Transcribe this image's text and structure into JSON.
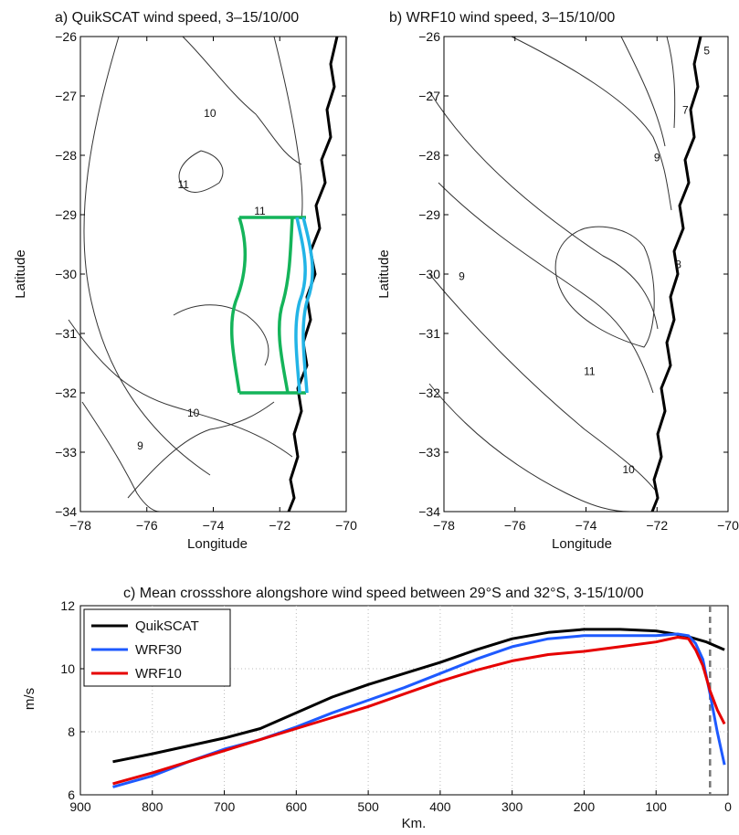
{
  "chart_data": [
    {
      "type": "contour",
      "title": "a) QuikSCAT wind speed, 3–15/10/00",
      "xlabel": "Longitude",
      "ylabel": "Latitude",
      "xlim": [
        -78,
        -70
      ],
      "ylim": [
        -34,
        -26
      ],
      "xticks": [
        -78,
        -76,
        -74,
        -72,
        -70
      ],
      "yticks": [
        -34,
        -33,
        -32,
        -31,
        -30,
        -29,
        -28,
        -27,
        -26
      ],
      "contour_labels": [
        {
          "text": "10",
          "lon": -74.1,
          "lat": -27.35
        },
        {
          "text": "11",
          "lon": -74.9,
          "lat": -28.55
        },
        {
          "text": "11",
          "lon": -72.6,
          "lat": -29.0
        },
        {
          "text": "10",
          "lon": -74.6,
          "lat": -32.4
        },
        {
          "text": "9",
          "lon": -76.2,
          "lat": -32.95
        }
      ],
      "boxes": [
        {
          "color": "#14b45a",
          "name": "outer domain",
          "lon_range": [
            -73.2,
            -71.3
          ],
          "lat_range": [
            -32.0,
            -29.1
          ]
        },
        {
          "color": "#22b4e6",
          "name": "nearshore domain",
          "lon_range": [
            -71.8,
            -71.3
          ],
          "lat_range": [
            -32.0,
            -29.1
          ]
        }
      ]
    },
    {
      "type": "contour",
      "title": "b) WRF10 wind speed,  3–15/10/00",
      "xlabel": "Longitude",
      "ylabel": "Latitude",
      "xlim": [
        -78,
        -70
      ],
      "ylim": [
        -34,
        -26
      ],
      "xticks": [
        -78,
        -76,
        -74,
        -72,
        -70
      ],
      "yticks": [
        -34,
        -33,
        -32,
        -31,
        -30,
        -29,
        -28,
        -27,
        -26
      ],
      "contour_labels": [
        {
          "text": "5",
          "lon": -70.6,
          "lat": -26.3
        },
        {
          "text": "7",
          "lon": -71.2,
          "lat": -27.3
        },
        {
          "text": "9",
          "lon": -72.0,
          "lat": -28.1
        },
        {
          "text": "8",
          "lon": -71.4,
          "lat": -29.9
        },
        {
          "text": "9",
          "lon": -77.5,
          "lat": -30.1
        },
        {
          "text": "11",
          "lon": -73.9,
          "lat": -31.7
        },
        {
          "text": "10",
          "lon": -72.8,
          "lat": -33.35
        }
      ]
    },
    {
      "type": "line",
      "title": "c) Mean crossshore alongshore wind speed between 29°S and 32°S, 3-15/10/00",
      "xlabel": "Km.",
      "ylabel": "m/s",
      "xlim": [
        900,
        0
      ],
      "ylim": [
        6,
        12
      ],
      "xticks": [
        900,
        800,
        700,
        600,
        500,
        400,
        300,
        200,
        100,
        0
      ],
      "yticks": [
        6,
        8,
        10,
        12
      ],
      "grid": true,
      "legend_position": "top-left",
      "vline_km": 25,
      "series": [
        {
          "name": "QuikSCAT",
          "color": "#000000",
          "x": [
            855,
            800,
            750,
            700,
            650,
            600,
            550,
            500,
            450,
            400,
            350,
            300,
            250,
            200,
            150,
            100,
            60,
            30,
            5
          ],
          "values": [
            7.05,
            7.3,
            7.55,
            7.8,
            8.1,
            8.6,
            9.1,
            9.5,
            9.85,
            10.2,
            10.6,
            10.95,
            11.15,
            11.25,
            11.25,
            11.2,
            11.05,
            10.85,
            10.6
          ]
        },
        {
          "name": "WRF30",
          "color": "#1e5aff",
          "x": [
            855,
            800,
            750,
            700,
            650,
            600,
            550,
            500,
            450,
            400,
            350,
            300,
            250,
            200,
            150,
            100,
            70,
            55,
            45,
            35,
            25,
            15,
            5
          ],
          "values": [
            6.25,
            6.6,
            7.05,
            7.45,
            7.75,
            8.15,
            8.6,
            9.0,
            9.4,
            9.85,
            10.3,
            10.7,
            10.95,
            11.05,
            11.05,
            11.05,
            11.1,
            11.05,
            10.8,
            10.3,
            9.2,
            8.0,
            6.95
          ]
        },
        {
          "name": "WRF10",
          "color": "#e60000",
          "x": [
            855,
            800,
            750,
            700,
            650,
            600,
            550,
            500,
            450,
            400,
            350,
            300,
            250,
            200,
            150,
            100,
            70,
            55,
            45,
            35,
            25,
            15,
            5
          ],
          "values": [
            6.35,
            6.7,
            7.05,
            7.4,
            7.75,
            8.1,
            8.45,
            8.8,
            9.2,
            9.6,
            9.95,
            10.25,
            10.45,
            10.55,
            10.7,
            10.85,
            11.0,
            10.95,
            10.6,
            10.1,
            9.3,
            8.7,
            8.25
          ]
        }
      ]
    }
  ]
}
